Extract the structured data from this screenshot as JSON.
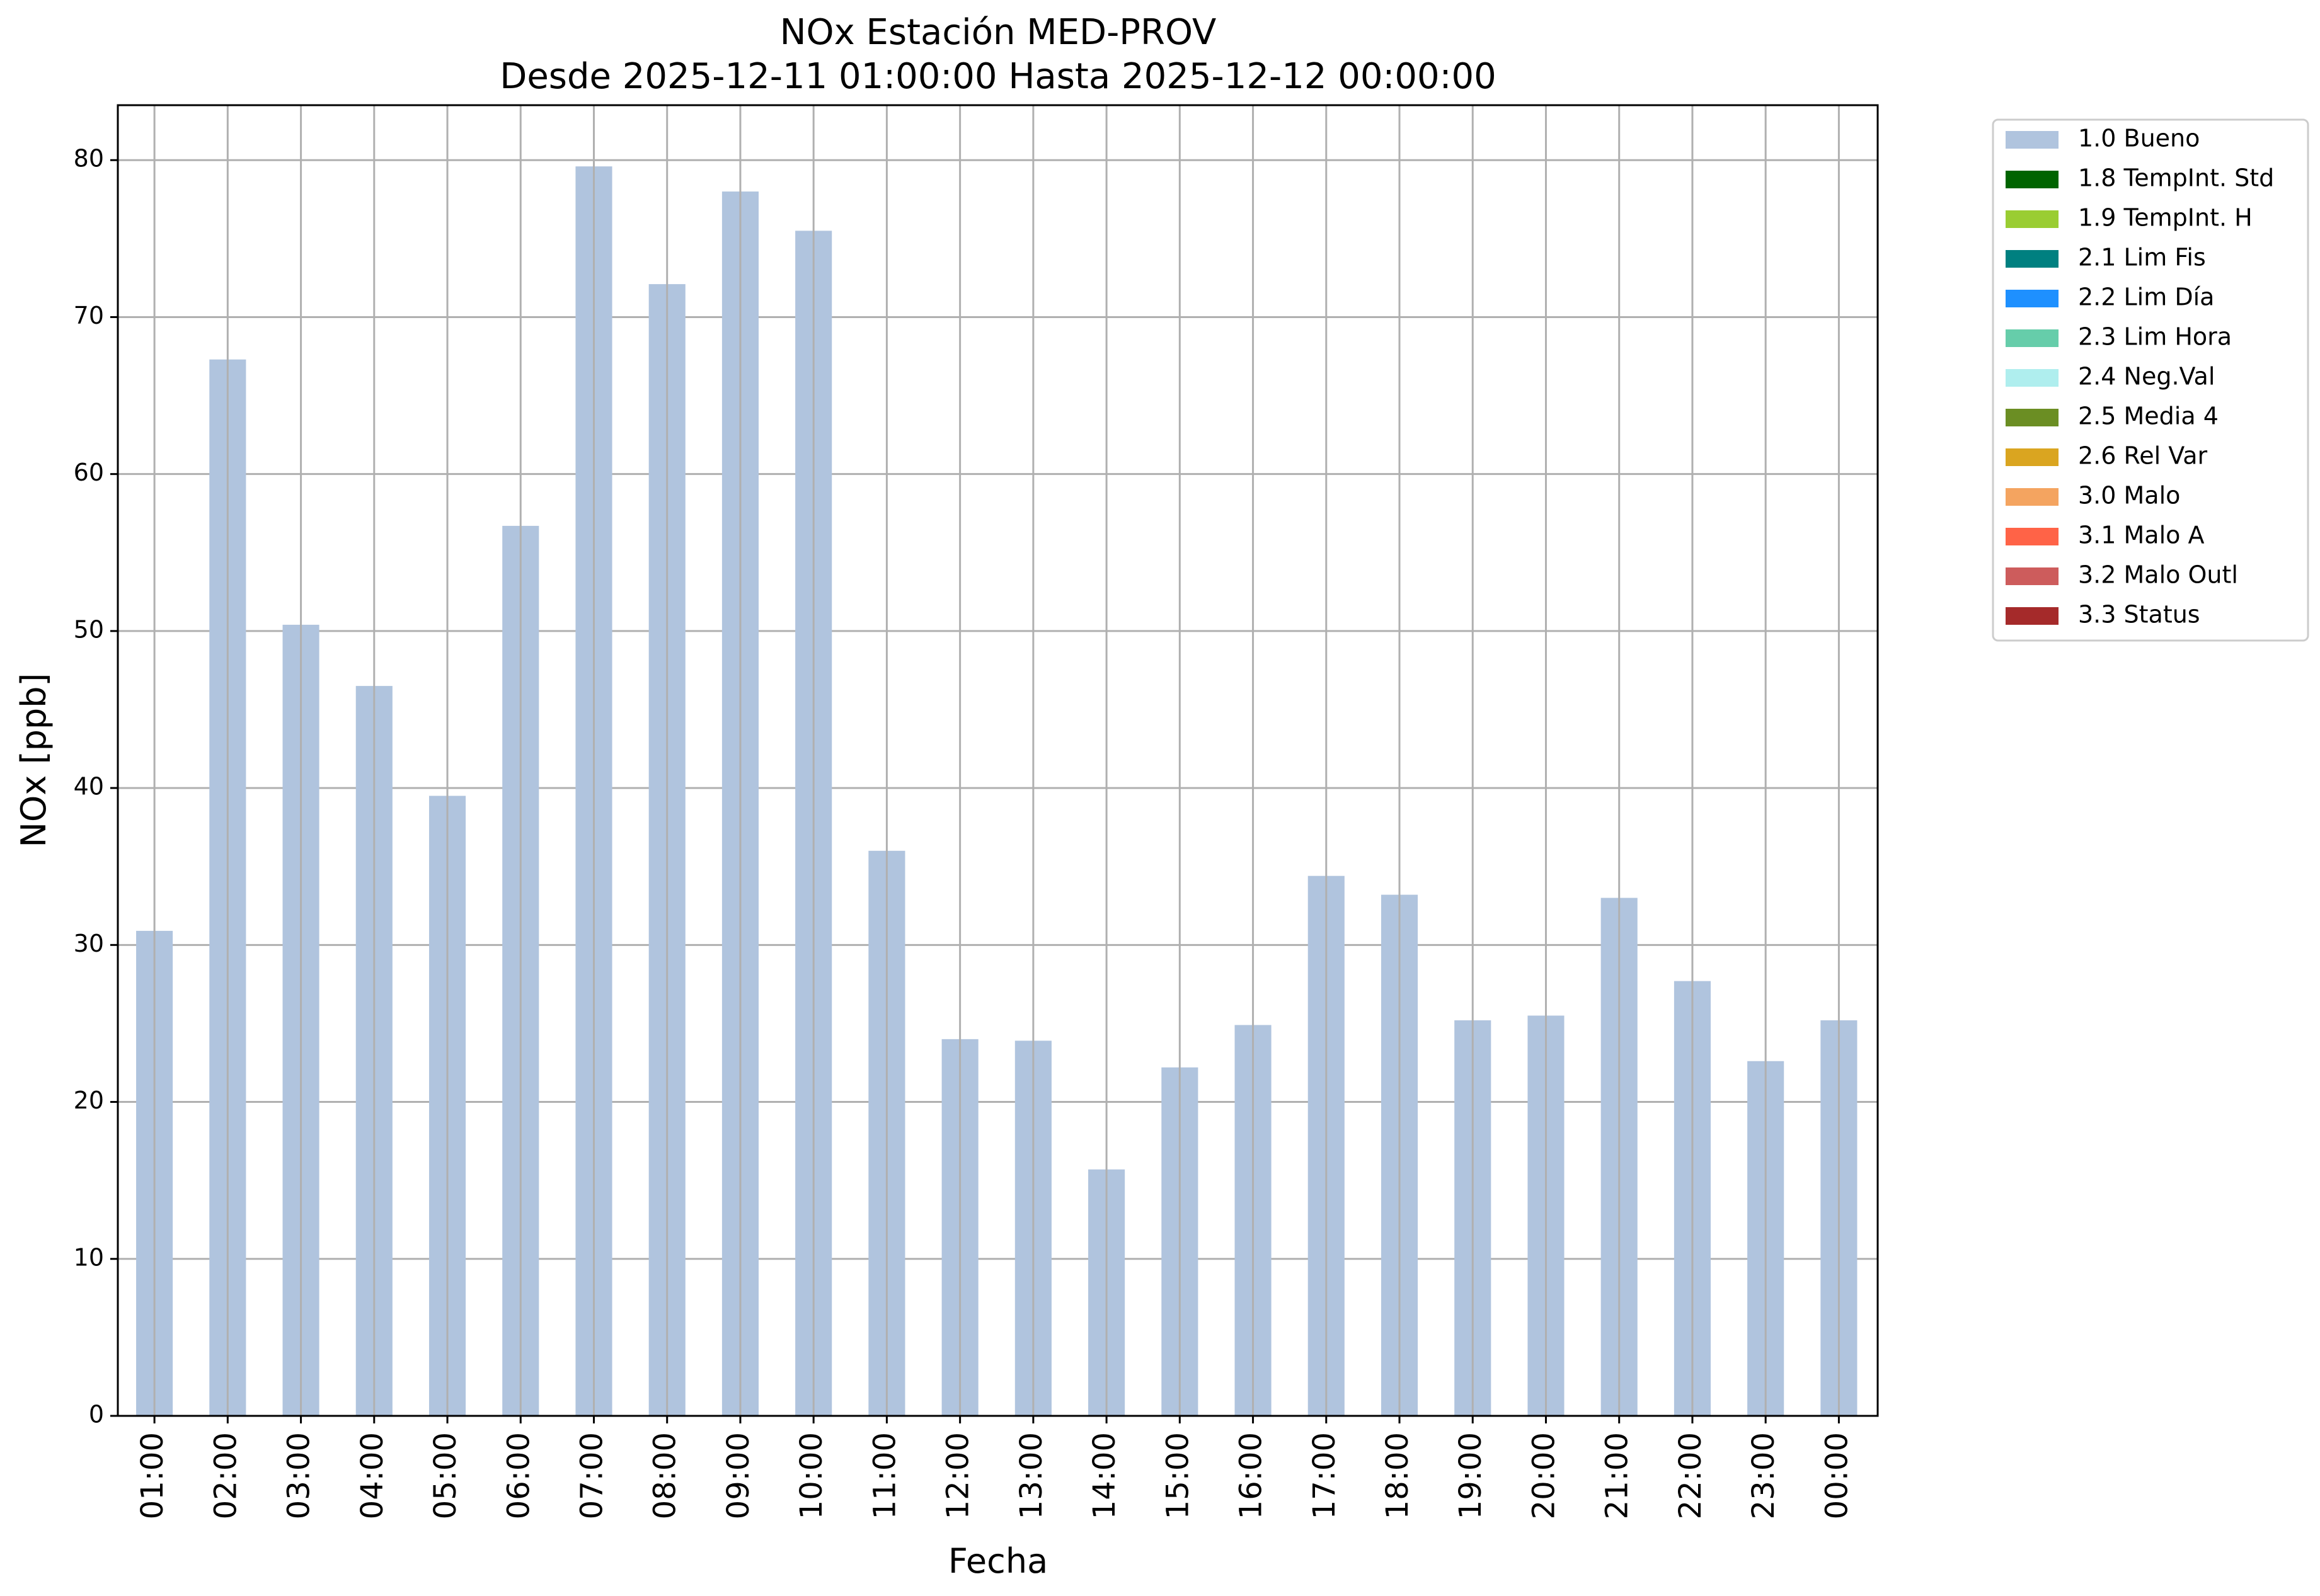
{
  "chart_data": {
    "type": "bar",
    "title": "NOx Estación MED-PROV",
    "subtitle": "Desde 2025-12-11 01:00:00 Hasta 2025-12-12 00:00:00",
    "xlabel": "Fecha",
    "ylabel": "NOx [ppb]",
    "ylim": [
      0,
      83.5
    ],
    "yticks": [
      0,
      10,
      20,
      30,
      40,
      50,
      60,
      70,
      80
    ],
    "grid": true,
    "legend_position": "outside-top-right",
    "categories": [
      "01:00",
      "02:00",
      "03:00",
      "04:00",
      "05:00",
      "06:00",
      "07:00",
      "08:00",
      "09:00",
      "10:00",
      "11:00",
      "12:00",
      "13:00",
      "14:00",
      "15:00",
      "16:00",
      "17:00",
      "18:00",
      "19:00",
      "20:00",
      "21:00",
      "22:00",
      "23:00",
      "00:00"
    ],
    "series": [
      {
        "name": "1.0 Bueno",
        "color": "#b0c4de",
        "values": [
          30.9,
          67.3,
          50.4,
          46.5,
          39.5,
          56.7,
          79.6,
          72.1,
          78.0,
          75.5,
          36.0,
          24.0,
          23.9,
          15.7,
          22.2,
          24.9,
          34.4,
          33.2,
          25.2,
          25.5,
          33.0,
          27.7,
          22.6,
          25.2
        ]
      }
    ],
    "legend": [
      {
        "label": "1.0 Bueno",
        "color": "#b0c4de"
      },
      {
        "label": "1.8 TempInt. Std",
        "color": "#006400"
      },
      {
        "label": "1.9 TempInt. H",
        "color": "#9acd32"
      },
      {
        "label": "2.1 Lim Fis",
        "color": "#008080"
      },
      {
        "label": "2.2 Lim Día",
        "color": "#1e90ff"
      },
      {
        "label": "2.3 Lim Hora",
        "color": "#66cdaa"
      },
      {
        "label": "2.4 Neg.Val",
        "color": "#afeeee"
      },
      {
        "label": "2.5 Media 4",
        "color": "#6b8e23"
      },
      {
        "label": "2.6 Rel Var",
        "color": "#daa520"
      },
      {
        "label": "3.0 Malo",
        "color": "#f4a460"
      },
      {
        "label": "3.1 Malo A",
        "color": "#ff6347"
      },
      {
        "label": "3.2 Malo Outl",
        "color": "#cd5c5c"
      },
      {
        "label": "3.3 Status",
        "color": "#a52a2a"
      }
    ]
  }
}
